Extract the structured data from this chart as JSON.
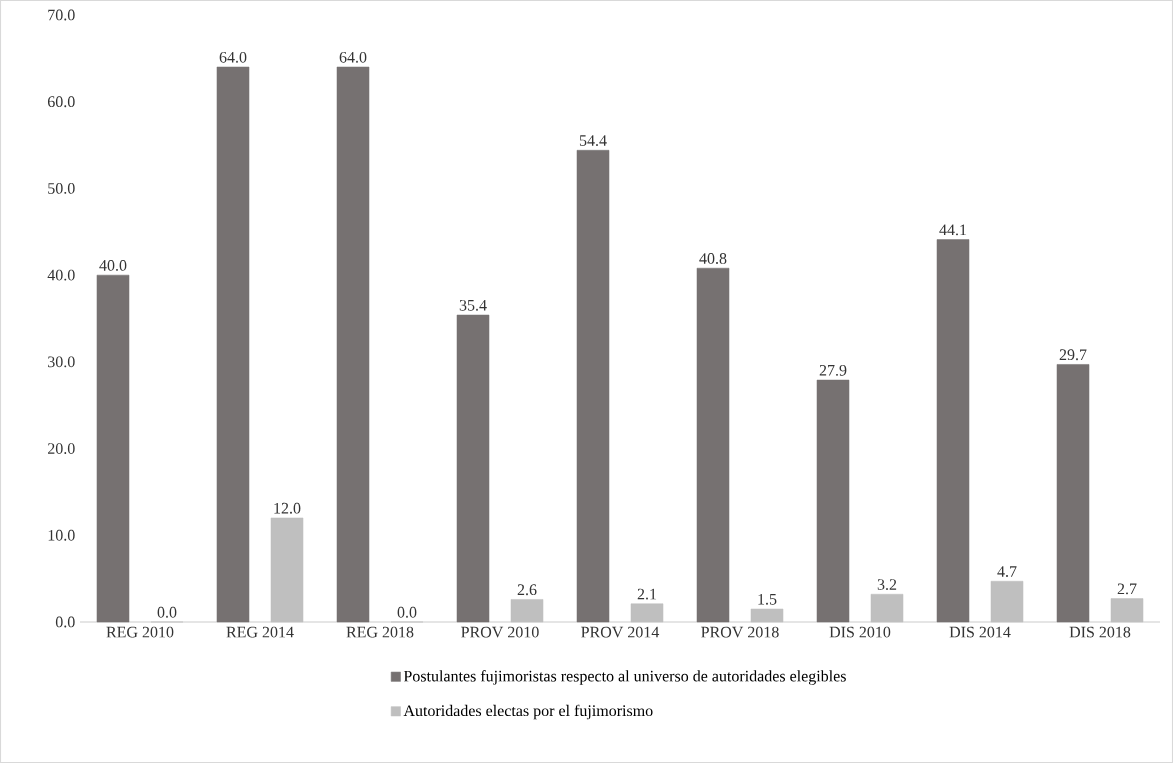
{
  "chart_data": {
    "type": "bar",
    "categories": [
      "REG 2010",
      "REG 2014",
      "REG 2018",
      "PROV 2010",
      "PROV 2014",
      "PROV 2018",
      "DIS 2010",
      "DIS 2014",
      "DIS 2018"
    ],
    "series": [
      {
        "name": "Postulantes  fujimoristas respecto al universo de autoridades elegibles",
        "color": "#767171",
        "values": [
          40.0,
          64.0,
          64.0,
          35.4,
          54.4,
          40.8,
          27.9,
          44.1,
          29.7
        ],
        "value_labels": [
          "40.0",
          "64.0",
          "64.0",
          "35.4",
          "54.4",
          "40.8",
          "27.9",
          "44.1",
          "29.7"
        ]
      },
      {
        "name": "Autoridades electas por el fujimorismo",
        "color": "#bfbfbf",
        "values": [
          0.0,
          12.0,
          0.0,
          2.6,
          2.1,
          1.5,
          3.2,
          4.7,
          2.7
        ],
        "value_labels": [
          "0.0",
          "12.0",
          "0.0",
          "2.6",
          "2.1",
          "1.5",
          "3.2",
          "4.7",
          "2.7"
        ]
      }
    ],
    "ylim": [
      0,
      70
    ],
    "yticks": [
      {
        "value": 0,
        "label": "0.0"
      },
      {
        "value": 10,
        "label": "10.0"
      },
      {
        "value": 20,
        "label": "20.0"
      },
      {
        "value": 30,
        "label": "30.0"
      },
      {
        "value": 40,
        "label": "40.0"
      },
      {
        "value": 50,
        "label": "50.0"
      },
      {
        "value": 60,
        "label": "60.0"
      },
      {
        "value": 70,
        "label": "70.0"
      }
    ],
    "grid": false,
    "legend": "bottom"
  }
}
